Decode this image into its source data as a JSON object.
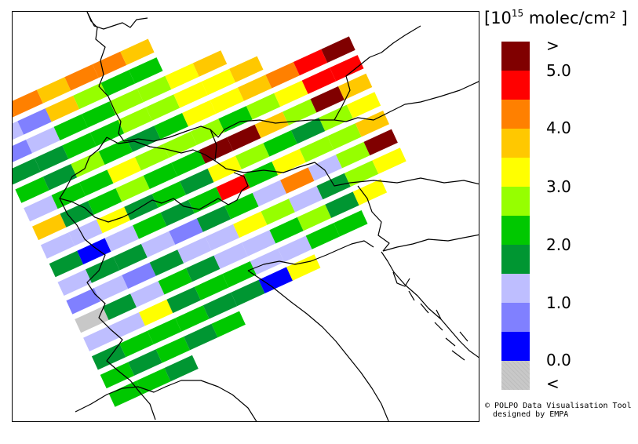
{
  "legend": {
    "title_prefix": "[10",
    "title_exp": "15",
    "title_suffix": " molec/cm² ]",
    "colors": [
      "#800000",
      "#ff0000",
      "#ff8000",
      "#ffc800",
      "#ffff00",
      "#96ff00",
      "#00c800",
      "#009632",
      "#bebeff",
      "#8080ff",
      "#0000ff",
      "#c8c8c8"
    ],
    "labels": {
      "gt": ">",
      "v5": "5.0",
      "v4": "4.0",
      "v3": "3.0",
      "v2": "2.0",
      "v1": "1.0",
      "v0": "0.0",
      "lt": "<"
    }
  },
  "credit": {
    "line1": "© POLPO Data Visualisation Tool",
    "line2": "designed by EMPA"
  },
  "swath": {
    "rows": [
      [
        2,
        2,
        3,
        2,
        2,
        3
      ],
      [
        8,
        9,
        3,
        5,
        6,
        6
      ],
      [
        9,
        8,
        6,
        6,
        5,
        5,
        4,
        3
      ],
      [
        7,
        7,
        6,
        6,
        5,
        5,
        4,
        4,
        3
      ],
      [
        6,
        7,
        5,
        6,
        7,
        6,
        4,
        4,
        3,
        2,
        1,
        0
      ],
      [
        8,
        6,
        6,
        4,
        5,
        5,
        5,
        6,
        5,
        4,
        1,
        1
      ],
      [
        3,
        7,
        6,
        5,
        6,
        6,
        0,
        0,
        3,
        5,
        0,
        3
      ],
      [
        8,
        8,
        4,
        7,
        6,
        7,
        4,
        5,
        6,
        7,
        5,
        4
      ],
      [
        7,
        10,
        8,
        6,
        7,
        6,
        1,
        6,
        4,
        5,
        5,
        3
      ],
      [
        8,
        7,
        7,
        8,
        9,
        7,
        6,
        8,
        2,
        8,
        5,
        0
      ],
      [
        9,
        8,
        9,
        7,
        8,
        8,
        4,
        5,
        8,
        7,
        5,
        4
      ],
      [
        11,
        7,
        8,
        6,
        7,
        8,
        8,
        6,
        5,
        7,
        4
      ],
      [
        8,
        8,
        4,
        7,
        6,
        6,
        8,
        8,
        6,
        6
      ],
      [
        7,
        6,
        6,
        6,
        7,
        7,
        10,
        4
      ],
      [
        6,
        7,
        6,
        7,
        6
      ],
      [
        6,
        6,
        7
      ]
    ]
  }
}
